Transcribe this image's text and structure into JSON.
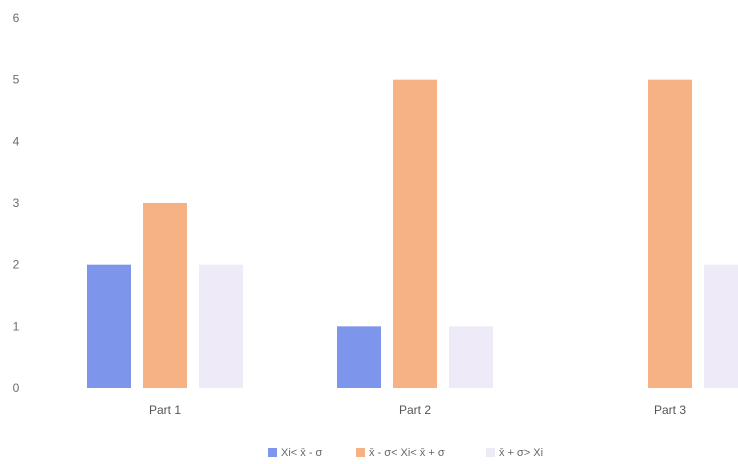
{
  "chart_data": {
    "type": "bar",
    "categories": [
      "Part 1",
      "Part 2",
      "Part 3"
    ],
    "series": [
      {
        "name": "Xi< x̄ - σ",
        "values": [
          2,
          1,
          0
        ],
        "color": "#7d95ea"
      },
      {
        "name": "x̄ - σ< Xi< x̄ + σ",
        "values": [
          3,
          5,
          5
        ],
        "color": "#f6b184"
      },
      {
        "name": "x̄ + σ> Xi",
        "values": [
          2,
          1,
          2
        ],
        "color": "#eeeaf7"
      }
    ],
    "title": "",
    "xlabel": "",
    "ylabel": "",
    "ylim": [
      0,
      6
    ],
    "yticks": [
      0,
      1,
      2,
      3,
      4,
      5,
      6
    ],
    "grid": false,
    "legend": "bottom"
  }
}
